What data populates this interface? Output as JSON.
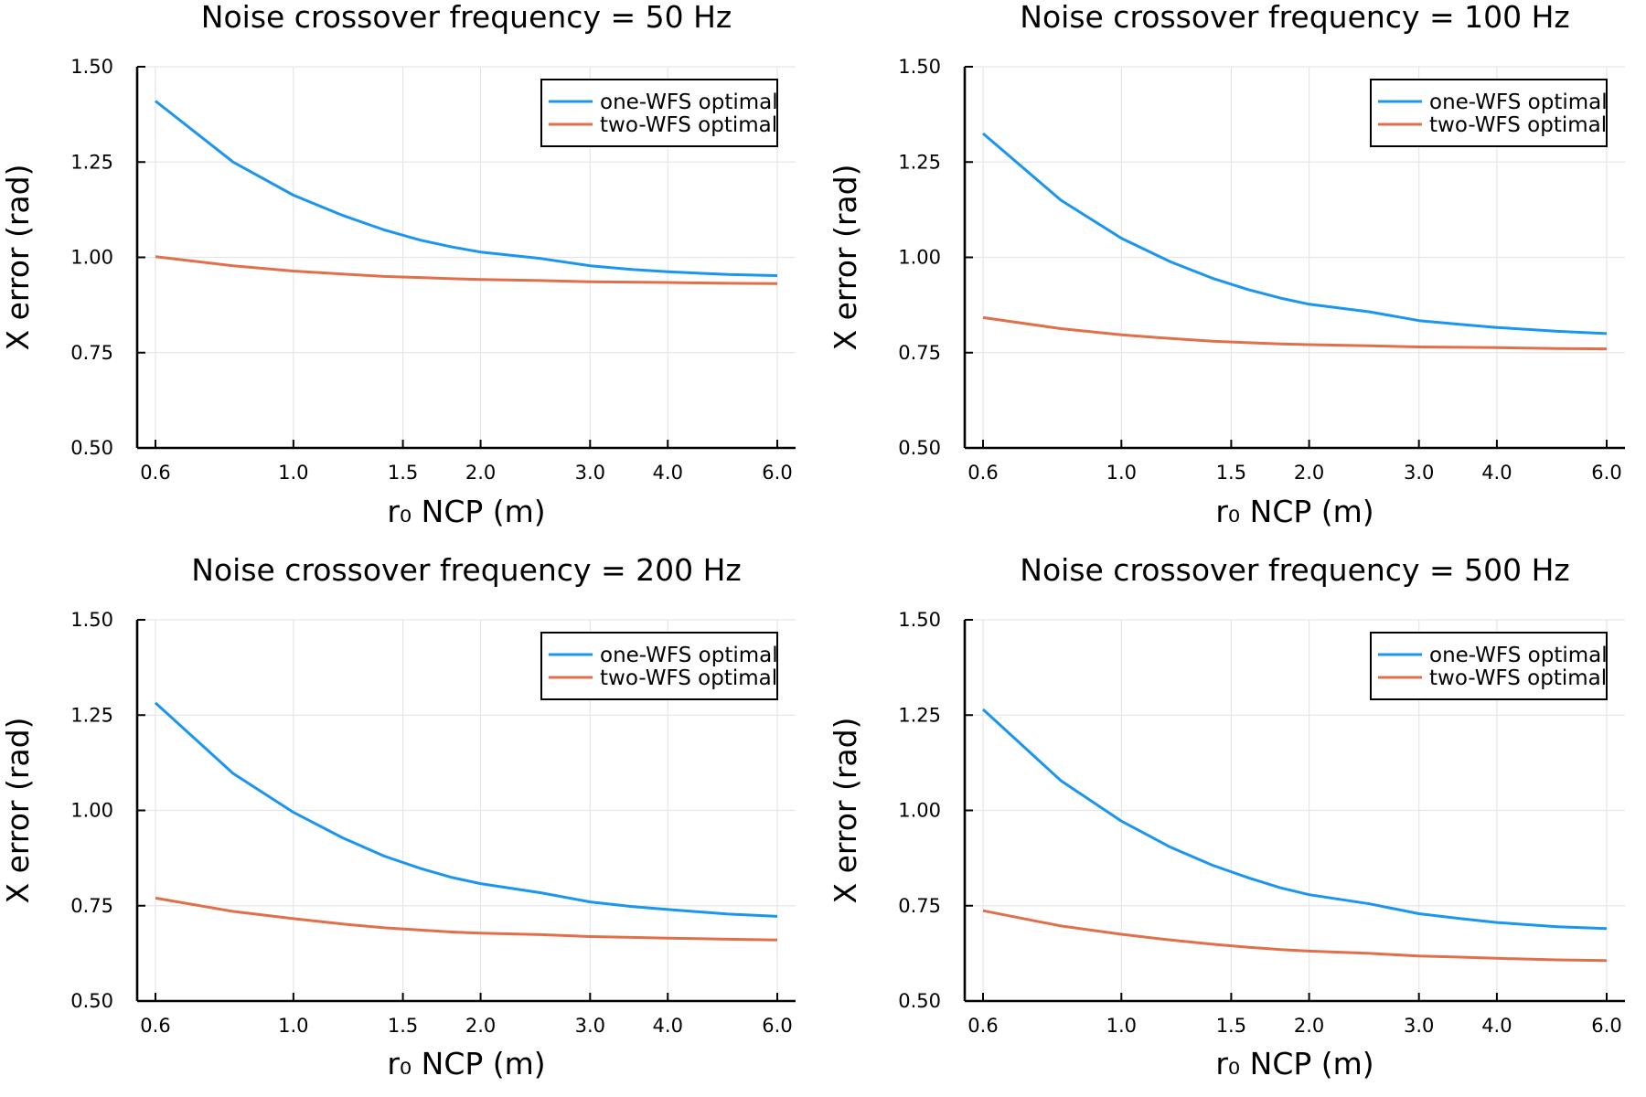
{
  "colors": {
    "one_wfs": "#1a96f0",
    "two_wfs": "#e1704a",
    "grid": "#e6e6e6",
    "axis": "#000000"
  },
  "chart_data": [
    {
      "type": "line",
      "title": "Noise crossover frequency = 50 Hz",
      "xlabel": "r₀ NCP (m)",
      "ylabel": "X error (rad)",
      "xscale": "log",
      "xlim": [
        0.6,
        6.0
      ],
      "ylim": [
        0.5,
        1.5
      ],
      "xticks": [
        0.6,
        1.0,
        1.5,
        2.0,
        3.0,
        4.0,
        6.0
      ],
      "xticklabels": [
        "0.6",
        "1.0",
        "1.5",
        "2.0",
        "3.0",
        "4.0",
        "6.0"
      ],
      "yticks": [
        0.5,
        0.75,
        1.0,
        1.25,
        1.5
      ],
      "yticklabels": [
        "0.50",
        "0.75",
        "1.00",
        "1.25",
        "1.50"
      ],
      "grid": true,
      "legend": "top-right",
      "series": [
        {
          "name": "one-WFS optimal",
          "x": [
            0.6,
            0.8,
            1.0,
            1.2,
            1.4,
            1.6,
            1.8,
            2.0,
            2.5,
            3.0,
            3.5,
            4.0,
            5.0,
            6.0
          ],
          "y": [
            1.41,
            1.25,
            1.163,
            1.11,
            1.072,
            1.045,
            1.027,
            1.014,
            0.997,
            0.978,
            0.968,
            0.962,
            0.955,
            0.952
          ]
        },
        {
          "name": "two-WFS optimal",
          "x": [
            0.6,
            0.8,
            1.0,
            1.2,
            1.4,
            1.6,
            1.8,
            2.0,
            2.5,
            3.0,
            3.5,
            4.0,
            5.0,
            6.0
          ],
          "y": [
            1.002,
            0.978,
            0.964,
            0.956,
            0.95,
            0.947,
            0.944,
            0.942,
            0.939,
            0.936,
            0.935,
            0.934,
            0.932,
            0.931
          ]
        }
      ]
    },
    {
      "type": "line",
      "title": "Noise crossover frequency = 100 Hz",
      "xlabel": "r₀ NCP (m)",
      "ylabel": "X error (rad)",
      "xscale": "log",
      "xlim": [
        0.6,
        6.0
      ],
      "ylim": [
        0.5,
        1.5
      ],
      "xticks": [
        0.6,
        1.0,
        1.5,
        2.0,
        3.0,
        4.0,
        6.0
      ],
      "xticklabels": [
        "0.6",
        "1.0",
        "1.5",
        "2.0",
        "3.0",
        "4.0",
        "6.0"
      ],
      "yticks": [
        0.5,
        0.75,
        1.0,
        1.25,
        1.5
      ],
      "yticklabels": [
        "0.50",
        "0.75",
        "1.00",
        "1.25",
        "1.50"
      ],
      "grid": true,
      "legend": "top-right",
      "series": [
        {
          "name": "one-WFS optimal",
          "x": [
            0.6,
            0.8,
            1.0,
            1.2,
            1.4,
            1.6,
            1.8,
            2.0,
            2.5,
            3.0,
            3.5,
            4.0,
            5.0,
            6.0
          ],
          "y": [
            1.325,
            1.15,
            1.05,
            0.988,
            0.945,
            0.915,
            0.893,
            0.877,
            0.857,
            0.834,
            0.824,
            0.816,
            0.806,
            0.8
          ]
        },
        {
          "name": "two-WFS optimal",
          "x": [
            0.6,
            0.8,
            1.0,
            1.2,
            1.4,
            1.6,
            1.8,
            2.0,
            2.5,
            3.0,
            3.5,
            4.0,
            5.0,
            6.0
          ],
          "y": [
            0.842,
            0.813,
            0.797,
            0.787,
            0.78,
            0.776,
            0.773,
            0.771,
            0.768,
            0.765,
            0.764,
            0.763,
            0.761,
            0.76
          ]
        }
      ]
    },
    {
      "type": "line",
      "title": "Noise crossover frequency = 200 Hz",
      "xlabel": "r₀ NCP (m)",
      "ylabel": "X error (rad)",
      "xscale": "log",
      "xlim": [
        0.6,
        6.0
      ],
      "ylim": [
        0.5,
        1.5
      ],
      "xticks": [
        0.6,
        1.0,
        1.5,
        2.0,
        3.0,
        4.0,
        6.0
      ],
      "xticklabels": [
        "0.6",
        "1.0",
        "1.5",
        "2.0",
        "3.0",
        "4.0",
        "6.0"
      ],
      "yticks": [
        0.5,
        0.75,
        1.0,
        1.25,
        1.5
      ],
      "yticklabels": [
        "0.50",
        "0.75",
        "1.00",
        "1.25",
        "1.50"
      ],
      "grid": true,
      "legend": "top-right",
      "series": [
        {
          "name": "one-WFS optimal",
          "x": [
            0.6,
            0.8,
            1.0,
            1.2,
            1.4,
            1.6,
            1.8,
            2.0,
            2.5,
            3.0,
            3.5,
            4.0,
            5.0,
            6.0
          ],
          "y": [
            1.282,
            1.097,
            0.995,
            0.928,
            0.88,
            0.848,
            0.824,
            0.808,
            0.784,
            0.76,
            0.748,
            0.74,
            0.728,
            0.722
          ]
        },
        {
          "name": "two-WFS optimal",
          "x": [
            0.6,
            0.8,
            1.0,
            1.2,
            1.4,
            1.6,
            1.8,
            2.0,
            2.5,
            3.0,
            3.5,
            4.0,
            5.0,
            6.0
          ],
          "y": [
            0.77,
            0.735,
            0.716,
            0.702,
            0.692,
            0.686,
            0.681,
            0.678,
            0.674,
            0.669,
            0.667,
            0.665,
            0.662,
            0.66
          ]
        }
      ]
    },
    {
      "type": "line",
      "title": "Noise crossover frequency = 500 Hz",
      "xlabel": "r₀ NCP (m)",
      "ylabel": "X error (rad)",
      "xscale": "log",
      "xlim": [
        0.6,
        6.0
      ],
      "ylim": [
        0.5,
        1.5
      ],
      "xticks": [
        0.6,
        1.0,
        1.5,
        2.0,
        3.0,
        4.0,
        6.0
      ],
      "xticklabels": [
        "0.6",
        "1.0",
        "1.5",
        "2.0",
        "3.0",
        "4.0",
        "6.0"
      ],
      "yticks": [
        0.5,
        0.75,
        1.0,
        1.25,
        1.5
      ],
      "yticklabels": [
        "0.50",
        "0.75",
        "1.00",
        "1.25",
        "1.50"
      ],
      "grid": true,
      "legend": "top-right",
      "series": [
        {
          "name": "one-WFS optimal",
          "x": [
            0.6,
            0.8,
            1.0,
            1.2,
            1.4,
            1.6,
            1.8,
            2.0,
            2.5,
            3.0,
            3.5,
            4.0,
            5.0,
            6.0
          ],
          "y": [
            1.265,
            1.078,
            0.972,
            0.903,
            0.856,
            0.823,
            0.797,
            0.779,
            0.755,
            0.729,
            0.716,
            0.706,
            0.695,
            0.69
          ]
        },
        {
          "name": "two-WFS optimal",
          "x": [
            0.6,
            0.8,
            1.0,
            1.2,
            1.4,
            1.6,
            1.8,
            2.0,
            2.5,
            3.0,
            3.5,
            4.0,
            5.0,
            6.0
          ],
          "y": [
            0.737,
            0.697,
            0.675,
            0.66,
            0.649,
            0.641,
            0.635,
            0.631,
            0.625,
            0.618,
            0.615,
            0.612,
            0.608,
            0.606
          ]
        }
      ]
    }
  ]
}
